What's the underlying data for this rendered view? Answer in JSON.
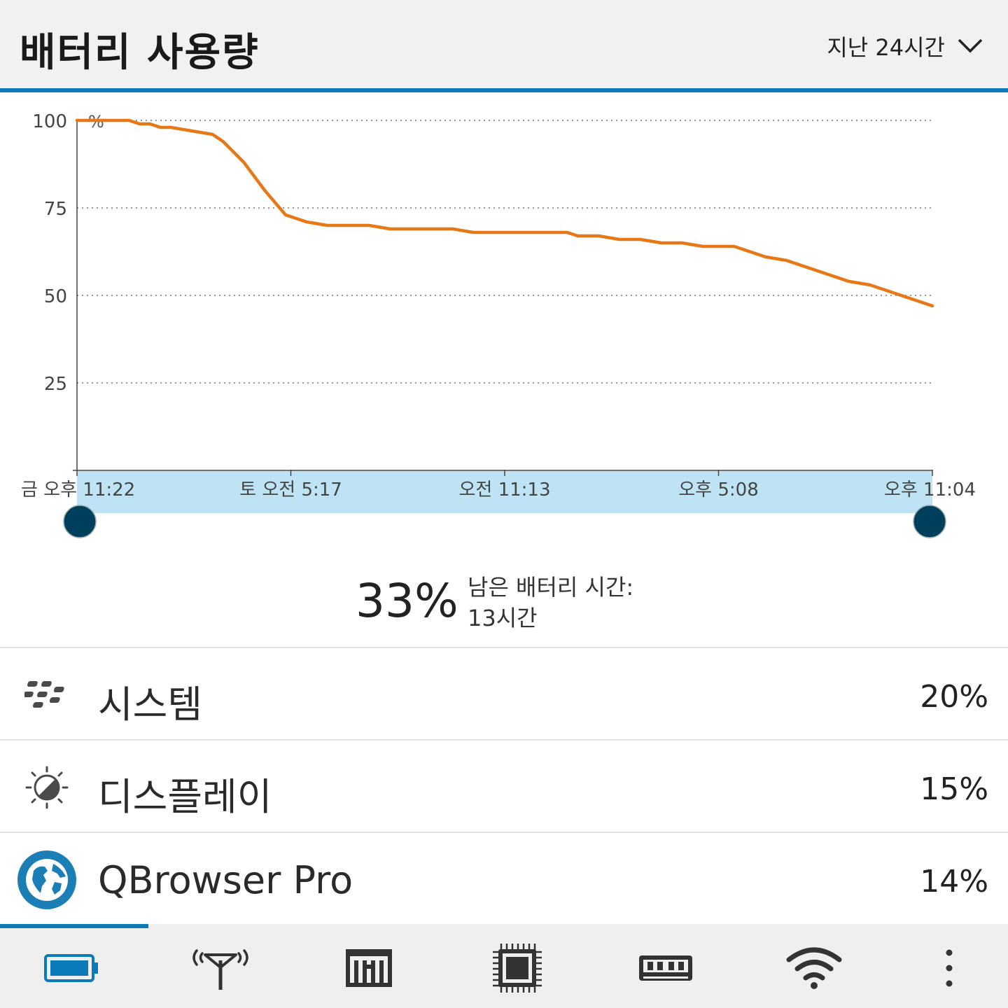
{
  "header": {
    "title": "배터리 사용량",
    "range_label": "지난 24시간"
  },
  "chart_data": {
    "type": "line",
    "y_unit_label": "%",
    "yticks": [
      100,
      75,
      50,
      25
    ],
    "ylim": [
      0,
      100
    ],
    "xticks": [
      "금 오후 11:22",
      "토 오전 5:17",
      "오전 11:13",
      "오후 5:08",
      "오후 11:04"
    ],
    "grid": true,
    "line_color": "#e67817",
    "series": [
      {
        "x": [
          0,
          1,
          3,
          5,
          6,
          7,
          8,
          9,
          11,
          13,
          14,
          16,
          18,
          20,
          22,
          24,
          26,
          28,
          30,
          32,
          34,
          36,
          38,
          40,
          42,
          44,
          46,
          47,
          48,
          50,
          52,
          54,
          56,
          58,
          60,
          62,
          63,
          64,
          66,
          68,
          70,
          72,
          74,
          76,
          77,
          78,
          79,
          80,
          81,
          82
        ],
        "values": [
          100,
          100,
          100,
          100,
          99,
          99,
          98,
          98,
          97,
          96,
          94,
          88,
          80,
          73,
          71,
          70,
          70,
          70,
          69,
          69,
          69,
          69,
          68,
          68,
          68,
          68,
          68,
          68,
          67,
          67,
          66,
          66,
          65,
          65,
          64,
          64,
          64,
          63,
          61,
          60,
          58,
          56,
          54,
          53,
          52,
          51,
          50,
          49,
          48,
          47
        ]
      }
    ]
  },
  "summary": {
    "percent": "33%",
    "remaining_label": "남은 배터리 시간:",
    "remaining_value": "13시간"
  },
  "apps": [
    {
      "name": "시스템",
      "value": "20%",
      "icon": "blackberry-logo-icon"
    },
    {
      "name": "디스플레이",
      "value": "15%",
      "icon": "brightness-icon"
    },
    {
      "name": "QBrowser Pro",
      "value": "14%",
      "icon": "globe-icon"
    }
  ],
  "tabs": [
    {
      "icon": "battery-icon",
      "active": true
    },
    {
      "icon": "antenna-icon"
    },
    {
      "icon": "storage-icon"
    },
    {
      "icon": "cpu-icon"
    },
    {
      "icon": "memory-icon"
    },
    {
      "icon": "wifi-icon"
    },
    {
      "icon": "more-icon"
    }
  ],
  "colors": {
    "accent": "#0b7ab8",
    "line": "#e67817",
    "handle": "#003f5c",
    "range_fill": "#bde3f5"
  }
}
